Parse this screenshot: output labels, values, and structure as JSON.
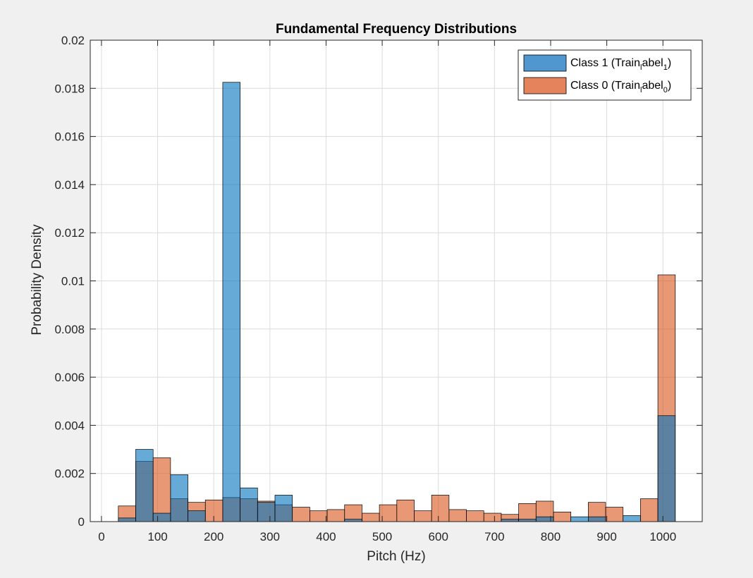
{
  "chart_data": {
    "type": "bar",
    "title": "Fundamental Frequency Distributions",
    "xlabel": "Pitch (Hz)",
    "ylabel": "Probability Density",
    "xlim": [
      -20,
      1070
    ],
    "ylim": [
      0,
      0.02
    ],
    "xticks": [
      0,
      100,
      200,
      300,
      400,
      500,
      600,
      700,
      800,
      900,
      1000
    ],
    "yticks": [
      0,
      0.002,
      0.004,
      0.006,
      0.008,
      0.01,
      0.012,
      0.014,
      0.016,
      0.018,
      0.02
    ],
    "xtick_labels": [
      "0",
      "100",
      "200",
      "300",
      "400",
      "500",
      "600",
      "700",
      "800",
      "900",
      "1000"
    ],
    "ytick_labels": [
      "0",
      "0.002",
      "0.004",
      "0.006",
      "0.008",
      "0.01",
      "0.012",
      "0.014",
      "0.016",
      "0.018",
      "0.02"
    ],
    "grid": true,
    "legend_position": "top-right",
    "bin_edges": [
      30,
      61,
      92,
      123,
      154,
      185,
      216,
      247,
      278,
      309,
      340,
      371,
      402,
      433,
      464,
      495,
      526,
      557,
      588,
      619,
      650,
      681,
      712,
      743,
      774,
      805,
      836,
      867,
      898,
      929,
      960,
      991,
      1022
    ],
    "series": [
      {
        "name": "Class 1 (Train_label_1)",
        "legend_main": "Class 1 (Train",
        "legend_sub1": "l",
        "legend_mid": "abel",
        "legend_sub2": "1",
        "legend_end": ")",
        "color": "#0072BD",
        "fill": "#4f97ce",
        "values": [
          0.00015,
          0.003,
          0.00035,
          0.00195,
          0.00045,
          0.0,
          0.01825,
          0.0014,
          0.0008,
          0.0011,
          0.0,
          0.0,
          0.0,
          0.0001,
          0.0,
          0.0,
          0.0,
          0.0,
          0.0,
          0.0,
          0.0,
          0.0,
          0.0001,
          0.0001,
          0.0002,
          0.0,
          0.0002,
          0.0002,
          0.0,
          0.00025,
          0.0,
          0.0044
        ]
      },
      {
        "name": "Class 0 (Train_label_0)",
        "legend_main": "Class 0 (Train",
        "legend_sub1": "l",
        "legend_mid": "abel",
        "legend_sub2": "0",
        "legend_end": ")",
        "color": "#D95319",
        "fill": "#e5835c",
        "values": [
          0.00065,
          0.0025,
          0.00265,
          0.00095,
          0.0008,
          0.0009,
          0.001,
          0.00095,
          0.00085,
          0.0007,
          0.0006,
          0.00045,
          0.0005,
          0.0007,
          0.00035,
          0.0007,
          0.0009,
          0.00045,
          0.0011,
          0.0005,
          0.00045,
          0.00035,
          0.0003,
          0.00075,
          0.00085,
          0.0004,
          0.0,
          0.0008,
          0.0006,
          0.0,
          0.00095,
          0.01025
        ]
      }
    ]
  }
}
